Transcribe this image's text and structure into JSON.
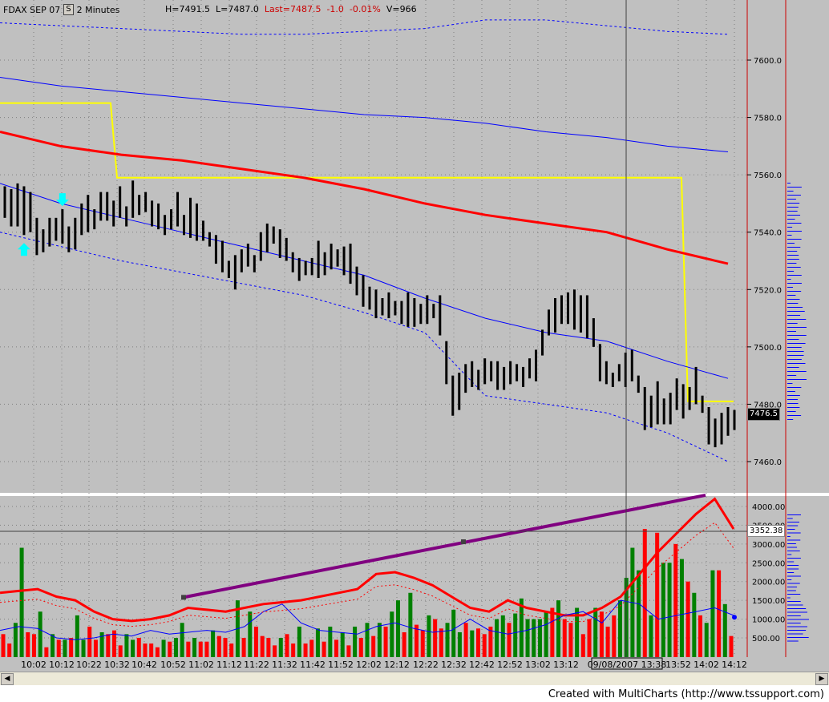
{
  "header": {
    "symbol": "FDAX SEP 07",
    "interval_btn": "S",
    "interval": "2 Minutes",
    "high": "H=7491.5",
    "low": "L=7487.0",
    "last": "Last=7487.5",
    "change": "-1.0",
    "change_pct": "-0.01%",
    "volume": "V=966"
  },
  "price_badge": "7476.5",
  "volume_badge": "3352.38",
  "cursor_date": "09/08/2007 13:38",
  "footer": "Created with MultiCharts (http://www.tssupport.com)",
  "colors": {
    "background": "#c0c0c0",
    "grid": "#808080",
    "bars": "#000000",
    "yellow_line": "#ffff00",
    "red_line": "#ff0000",
    "blue_line": "#0000ff",
    "volume_up": "#008000",
    "volume_down": "#ff0000",
    "trendline": "#800080",
    "cyan_arrow": "#00ffff"
  },
  "chart_data": [
    {
      "type": "ohlc",
      "title": "FDAX SEP 07 - 2 Minutes",
      "ylim": [
        7450,
        7617
      ],
      "y_ticks": [
        7460.0,
        7480.0,
        7500.0,
        7520.0,
        7540.0,
        7560.0,
        7580.0,
        7600.0
      ],
      "y_tick_labels": [
        "7460.0",
        "7480.0",
        "7500.0",
        "7520.0",
        "7540.0",
        "7560.0",
        "7580.0",
        "7600.0"
      ],
      "x_tick_labels": [
        "10:02",
        "10:12",
        "10:22",
        "10:32",
        "10:42",
        "10:52",
        "11:02",
        "11:12",
        "11:22",
        "11:32",
        "11:42",
        "11:52",
        "12:02",
        "12:12",
        "12:22",
        "12:32",
        "12:42",
        "12:52",
        "13:02",
        "13:12",
        "13:52",
        "14:02",
        "14:12"
      ],
      "bars_hl": [
        [
          7556,
          7545
        ],
        [
          7555,
          7542
        ],
        [
          7557,
          7542
        ],
        [
          7556,
          7539
        ],
        [
          7554,
          7540
        ],
        [
          7545,
          7532
        ],
        [
          7541,
          7533
        ],
        [
          7545,
          7535
        ],
        [
          7545,
          7537
        ],
        [
          7548,
          7536
        ],
        [
          7542,
          7533
        ],
        [
          7545,
          7534
        ],
        [
          7550,
          7539
        ],
        [
          7553,
          7540
        ],
        [
          7548,
          7541
        ],
        [
          7554,
          7544
        ],
        [
          7554,
          7544
        ],
        [
          7551,
          7542
        ],
        [
          7556,
          7545
        ],
        [
          7549,
          7542
        ],
        [
          7558,
          7545
        ],
        [
          7553,
          7546
        ],
        [
          7554,
          7547
        ],
        [
          7551,
          7542
        ],
        [
          7550,
          7541
        ],
        [
          7546,
          7539
        ],
        [
          7548,
          7541
        ],
        [
          7554,
          7542
        ],
        [
          7546,
          7539
        ],
        [
          7552,
          7538
        ],
        [
          7550,
          7537
        ],
        [
          7544,
          7537
        ],
        [
          7540,
          7535
        ],
        [
          7539,
          7529
        ],
        [
          7537,
          7526
        ],
        [
          7530,
          7524
        ],
        [
          7532,
          7520
        ],
        [
          7534,
          7526
        ],
        [
          7536,
          7528
        ],
        [
          7532,
          7526
        ],
        [
          7540,
          7530
        ],
        [
          7543,
          7533
        ],
        [
          7542,
          7536
        ],
        [
          7541,
          7531
        ],
        [
          7538,
          7530
        ],
        [
          7533,
          7526
        ],
        [
          7531,
          7523
        ],
        [
          7530,
          7525
        ],
        [
          7531,
          7525
        ],
        [
          7537,
          7524
        ],
        [
          7533,
          7525
        ],
        [
          7536,
          7527
        ],
        [
          7534,
          7528
        ],
        [
          7535,
          7525
        ],
        [
          7536,
          7522
        ],
        [
          7528,
          7518
        ],
        [
          7525,
          7514
        ],
        [
          7521,
          7513
        ],
        [
          7520,
          7510
        ],
        [
          7517,
          7511
        ],
        [
          7519,
          7510
        ],
        [
          7516,
          7511
        ],
        [
          7516,
          7508
        ],
        [
          7519,
          7507
        ],
        [
          7517,
          7507
        ],
        [
          7515,
          7508
        ],
        [
          7518,
          7508
        ],
        [
          7515,
          7510
        ],
        [
          7518,
          7504
        ],
        [
          7502,
          7487
        ],
        [
          7490,
          7476
        ],
        [
          7491,
          7478
        ],
        [
          7494,
          7484
        ],
        [
          7495,
          7486
        ],
        [
          7492,
          7485
        ],
        [
          7496,
          7487
        ],
        [
          7495,
          7488
        ],
        [
          7495,
          7485
        ],
        [
          7493,
          7485
        ],
        [
          7495,
          7487
        ],
        [
          7494,
          7488
        ],
        [
          7493,
          7486
        ],
        [
          7496,
          7489
        ],
        [
          7499,
          7488
        ],
        [
          7506,
          7497
        ],
        [
          7513,
          7504
        ],
        [
          7517,
          7505
        ],
        [
          7518,
          7508
        ],
        [
          7519,
          7508
        ],
        [
          7520,
          7506
        ],
        [
          7518,
          7505
        ],
        [
          7518,
          7503
        ],
        [
          7510,
          7500
        ],
        [
          7501,
          7488
        ],
        [
          7495,
          7487
        ],
        [
          7491,
          7486
        ],
        [
          7494,
          7488
        ],
        [
          7498,
          7486
        ],
        [
          7499,
          7488
        ],
        [
          7490,
          7484
        ],
        [
          7486,
          7471
        ],
        [
          7483,
          7472
        ],
        [
          7488,
          7473
        ],
        [
          7482,
          7473
        ],
        [
          7484,
          7473
        ],
        [
          7489,
          7478
        ],
        [
          7487,
          7475
        ],
        [
          7486,
          7478
        ],
        [
          7493,
          7480
        ],
        [
          7483,
          7477
        ],
        [
          7479,
          7466
        ],
        [
          7475,
          7465
        ],
        [
          7477,
          7466
        ],
        [
          7479,
          7469
        ],
        [
          7478,
          7471
        ]
      ],
      "series": [
        {
          "name": "",
          "values": [
            7585,
            7585,
            7585,
            7585,
            7585,
            7559,
            7559,
            7559,
            7559,
            7559,
            7559,
            7481,
            7481
          ]
        },
        {
          "name": "",
          "values": [
            7575,
            7570,
            7567,
            7565,
            7562,
            7559,
            7555,
            7550,
            7546,
            7543,
            7540,
            7534,
            7529
          ]
        },
        {
          "name": "",
          "values": [
            7594,
            7591,
            7589,
            7587,
            7585,
            7583,
            7581,
            7580,
            7578,
            7575,
            7573,
            7570,
            7568
          ]
        },
        {
          "name": "",
          "values": [
            7557,
            7550,
            7545,
            7540,
            7535,
            7530,
            7525,
            7517,
            7510,
            7505,
            7502,
            7495,
            7489
          ]
        },
        {
          "name": "",
          "values": [
            7613,
            7612,
            7611,
            7610,
            7609,
            7609,
            7610,
            7611,
            7614,
            7614,
            7612,
            7610,
            7609
          ]
        },
        {
          "name": "",
          "values": [
            7540,
            7535,
            7530,
            7526,
            7522,
            7518,
            7512,
            7505,
            7483,
            7480,
            7477,
            7470,
            7460
          ]
        }
      ],
      "annotations": [
        {
          "type": "arrow-down",
          "bar_index": 9
        },
        {
          "type": "arrow-up",
          "bar_index": 3
        }
      ]
    },
    {
      "type": "bar",
      "ylim": [
        0,
        4300
      ],
      "y_ticks": [
        500,
        1000,
        1500,
        2000,
        2500,
        3000,
        3500,
        4000
      ],
      "y_tick_labels": [
        "500.00",
        "1000.00",
        "1500.00",
        "2000.00",
        "2500.00",
        "3000.00",
        "3500.00",
        "4000.00"
      ],
      "values": [
        600,
        350,
        900,
        2900,
        650,
        600,
        1200,
        250,
        600,
        450,
        450,
        500,
        1100,
        450,
        800,
        450,
        650,
        600,
        700,
        300,
        600,
        450,
        500,
        350,
        350,
        250,
        450,
        400,
        500,
        900,
        400,
        500,
        400,
        400,
        700,
        550,
        500,
        350,
        1500,
        500,
        1200,
        800,
        550,
        500,
        300,
        500,
        600,
        350,
        800,
        350,
        450,
        750,
        400,
        800,
        450,
        650,
        300,
        800,
        500,
        900,
        550,
        900,
        800,
        1200,
        1500,
        650,
        1700,
        850,
        700,
        1100,
        1000,
        750,
        900,
        1250,
        650,
        900,
        700,
        750,
        600,
        800,
        1000,
        1100,
        900,
        1150,
        1550,
        1000,
        1000,
        1000,
        1200,
        1300,
        1500,
        1000,
        900,
        1300,
        600,
        1000,
        1300,
        1200,
        800,
        1100,
        1500,
        2100,
        2900,
        2300,
        3400,
        1100,
        3300,
        2500,
        2500,
        3000,
        2600,
        2000,
        1700,
        1100,
        900,
        2300,
        2300,
        1400,
        550
      ],
      "up_flags": [
        0,
        0,
        1,
        1,
        0,
        0,
        1,
        0,
        1,
        0,
        1,
        0,
        1,
        1,
        0,
        0,
        1,
        0,
        0,
        0,
        1,
        1,
        0,
        0,
        0,
        0,
        1,
        0,
        1,
        1,
        0,
        1,
        0,
        0,
        1,
        0,
        0,
        0,
        1,
        0,
        1,
        0,
        0,
        0,
        0,
        1,
        0,
        0,
        1,
        0,
        0,
        1,
        0,
        1,
        0,
        1,
        0,
        1,
        0,
        1,
        0,
        1,
        0,
        1,
        1,
        0,
        1,
        0,
        0,
        1,
        0,
        0,
        1,
        1,
        1,
        0,
        1,
        0,
        0,
        0,
        1,
        1,
        0,
        1,
        1,
        1,
        1,
        1,
        1,
        0,
        1,
        0,
        0,
        1,
        0,
        0,
        1,
        0,
        0,
        0,
        1,
        1,
        1,
        1,
        0,
        1,
        0,
        1,
        1,
        0,
        1,
        0,
        1,
        0,
        1,
        1,
        0,
        1,
        0
      ],
      "series": [
        {
          "name": "",
          "values": [
            1700,
            1750,
            1800,
            1600,
            1500,
            1200,
            1000,
            950,
            1000,
            1100,
            1300,
            1250,
            1200,
            1300,
            1400,
            1450,
            1500,
            1600,
            1700,
            1800,
            2200,
            2250,
            2100,
            1900,
            1600,
            1300,
            1200,
            1500,
            1300,
            1200,
            1100,
            1100,
            1300,
            1600,
            2200,
            2800,
            3300,
            3800,
            4200,
            3400
          ]
        },
        {
          "name": "",
          "values": [
            700,
            800,
            750,
            500,
            450,
            500,
            600,
            550,
            700,
            600,
            650,
            700,
            650,
            800,
            1200,
            1400,
            900,
            700,
            650,
            600,
            800,
            900,
            750,
            650,
            700,
            1000,
            700,
            600,
            700,
            850,
            1100,
            1200,
            900,
            1500,
            1400,
            1000,
            1100,
            1200,
            1300,
            1100
          ]
        }
      ],
      "trendline": {
        "from_index": 38,
        "from_value": 1580,
        "to_index": 118,
        "to_value": 4300
      }
    }
  ]
}
